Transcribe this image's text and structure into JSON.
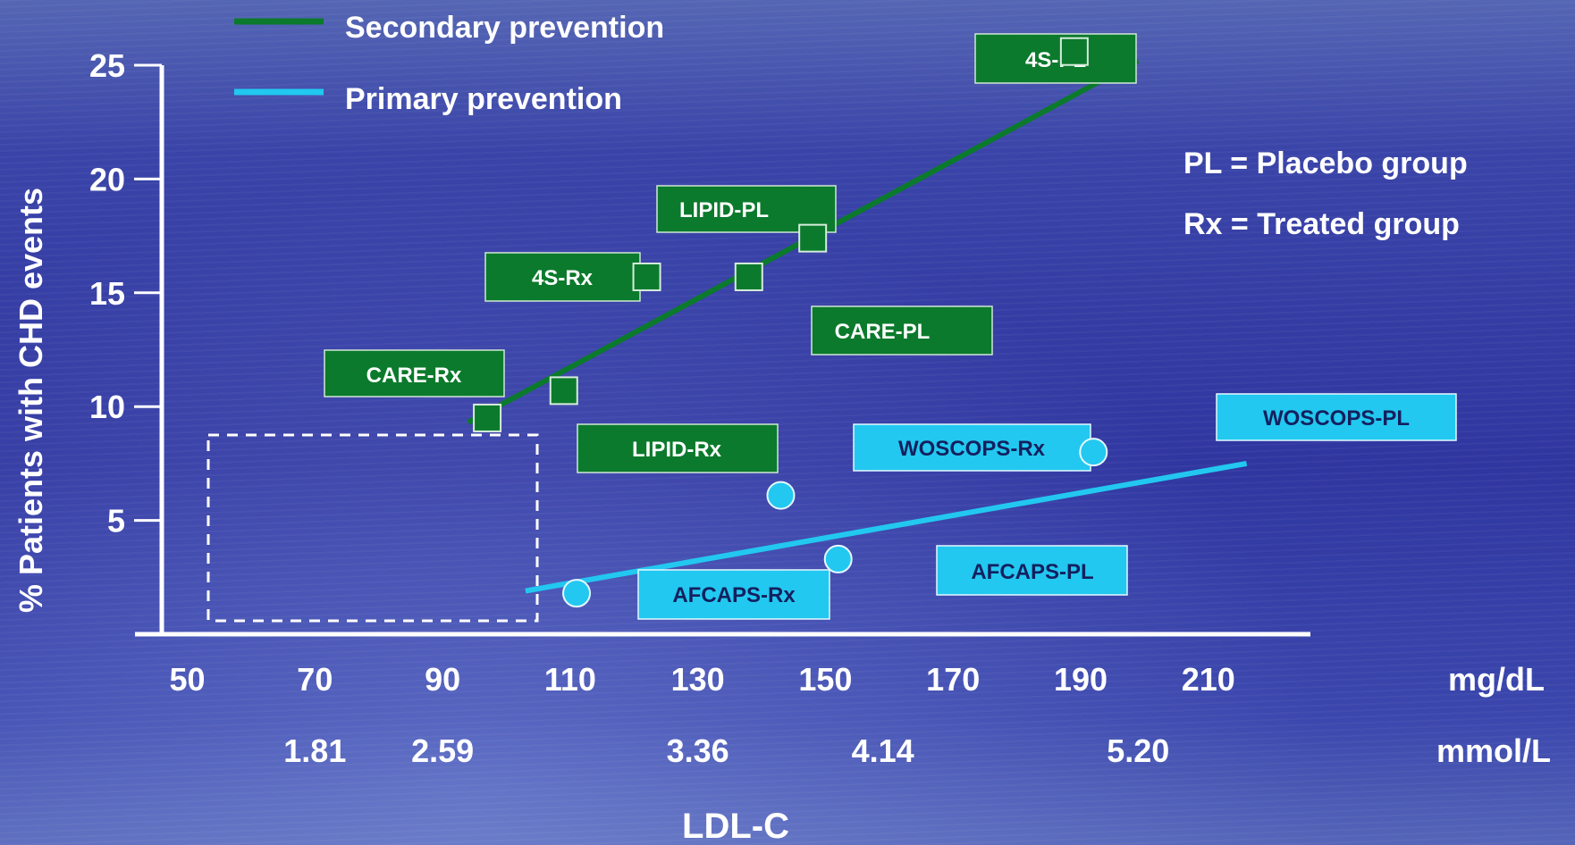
{
  "chart_data": {
    "type": "scatter",
    "ylabel": "% Patients with CHD events",
    "xlabel": "LDL-C",
    "x_unit_primary": "mg/dL",
    "x_unit_secondary": "mmol/L",
    "x_ticks": [
      50,
      70,
      90,
      110,
      130,
      150,
      170,
      190,
      210
    ],
    "x_ticks_mmol": [
      {
        "label": "1.81",
        "at": 70
      },
      {
        "label": "2.59",
        "at": 90
      },
      {
        "label": "3.36",
        "at": 130
      },
      {
        "label": "4.14",
        "at": 159
      },
      {
        "label": "5.20",
        "at": 199
      }
    ],
    "y_ticks": [
      5,
      10,
      15,
      20,
      25
    ],
    "xlim": [
      46,
      226
    ],
    "ylim": [
      0,
      25
    ],
    "legend_placement": "top-left",
    "notes": [
      "PL = Placebo group",
      "Rx = Treated group"
    ],
    "colors": {
      "secondary": "#0b7a2c",
      "primary": "#22c8f0"
    },
    "series": [
      {
        "name": "Secondary prevention",
        "marker": "square",
        "color": "#0b7a2c",
        "trendline": [
          [
            94,
            9.3
          ],
          [
            199,
            25.2
          ]
        ],
        "points": [
          {
            "label": "4S-PL",
            "x": 189,
            "y": 25.6
          },
          {
            "label": "LIPID-PL",
            "x": 148,
            "y": 17.4
          },
          {
            "label": "CARE-PL",
            "x": 138,
            "y": 15.7
          },
          {
            "label": "4S-Rx",
            "x": 122,
            "y": 15.7
          },
          {
            "label": "LIPID-Rx",
            "x": 109,
            "y": 10.7
          },
          {
            "label": "CARE-Rx",
            "x": 97,
            "y": 9.5
          }
        ]
      },
      {
        "name": "Primary prevention",
        "marker": "circle",
        "color": "#22c8f0",
        "trendline": [
          [
            103,
            1.9
          ],
          [
            216,
            7.5
          ]
        ],
        "points": [
          {
            "label": "WOSCOPS-PL",
            "x": 192,
            "y": 8.0
          },
          {
            "label": "WOSCOPS-Rx",
            "x": 143,
            "y": 6.1
          },
          {
            "label": "AFCAPS-PL",
            "x": 152,
            "y": 3.3
          },
          {
            "label": "AFCAPS-Rx",
            "x": 111,
            "y": 1.8
          }
        ]
      }
    ]
  }
}
